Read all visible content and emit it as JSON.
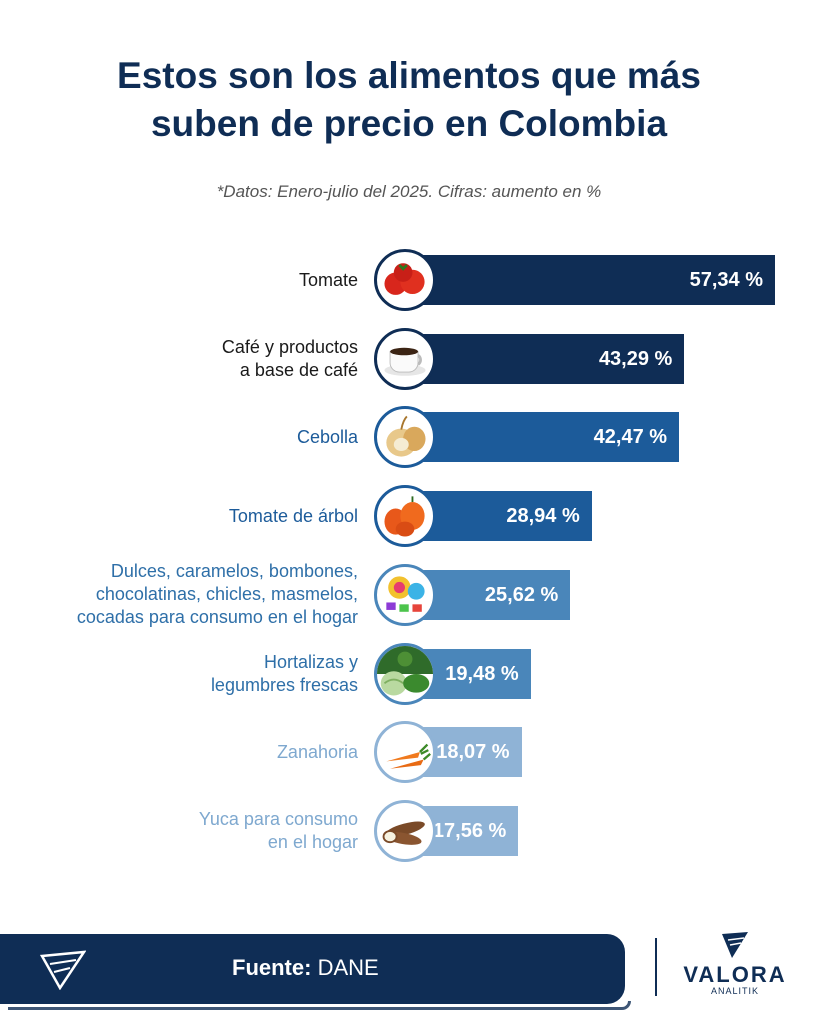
{
  "title_line1": "Estos son los alimentos que más",
  "title_line2": "suben de precio en Colombia",
  "subtitle": "*Datos: Enero-julio del 2025. Cifras: aumento en %",
  "chart_data": {
    "type": "bar",
    "orientation": "horizontal",
    "categories": [
      "Tomate",
      "Café y productos a base de café",
      "Cebolla",
      "Tomate de árbol",
      "Dulces, caramelos, bombones, chocolatinas, chicles, masmelos, cocadas para consumo en el hogar",
      "Hortalizas y legumbres frescas",
      "Zanahoria",
      "Yuca para consumo en el hogar"
    ],
    "values": [
      57.34,
      43.29,
      42.47,
      28.94,
      25.62,
      19.48,
      18.07,
      17.56
    ],
    "value_labels": [
      "57,34 %",
      "43,29 %",
      "42,47 %",
      "28,94 %",
      "25,62 %",
      "19,48 %",
      "18,07 %",
      "17,56 %"
    ],
    "label_lines": [
      [
        "Tomate"
      ],
      [
        "Café y productos",
        "a base de café"
      ],
      [
        "Cebolla"
      ],
      [
        "Tomate de árbol"
      ],
      [
        "Dulces, caramelos, bombones,",
        "chocolatinas, chicles, masmelos,",
        "cocadas para consumo en el hogar"
      ],
      [
        "Hortalizas y",
        "legumbres frescas"
      ],
      [
        "Zanahoria"
      ],
      [
        "Yuca para consumo",
        "en el hogar"
      ]
    ],
    "icons": [
      "tomato-icon",
      "coffee-cup-icon",
      "onion-icon",
      "tree-tomato-icon",
      "candy-icon",
      "vegetables-icon",
      "carrot-icon",
      "cassava-icon"
    ],
    "colors": [
      "#0f2d55",
      "#0f2d55",
      "#1c5b9a",
      "#1c5b9a",
      "#4a86ba",
      "#4a86ba",
      "#8fb3d6",
      "#8fb3d6"
    ],
    "label_colors": [
      "#1a1a1a",
      "#1a1a1a",
      "#1c5b9a",
      "#1c5b9a",
      "#2e6fa8",
      "#2e6fa8",
      "#7ea8cf",
      "#7ea8cf"
    ],
    "xlim": [
      0,
      57.34
    ],
    "xlabel": "",
    "ylabel": ""
  },
  "footer": {
    "source_label": "Fuente:",
    "source_value": "DANE"
  },
  "brand": {
    "name": "VALORA",
    "sub": "ANALITIK"
  }
}
